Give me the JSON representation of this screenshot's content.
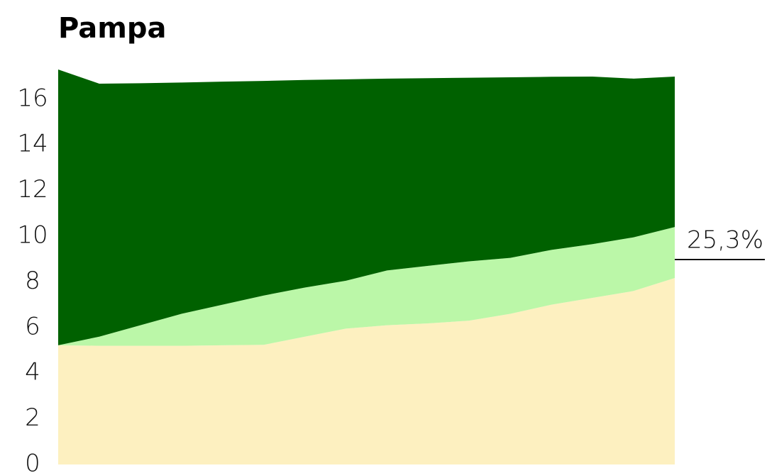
{
  "chart_data": {
    "type": "stacked-area",
    "title": "Pampa",
    "annotation": "25,3%",
    "categories": [
      null,
      null,
      null,
      null,
      null,
      null,
      null,
      null,
      null,
      null,
      null,
      null,
      null,
      null,
      null,
      null
    ],
    "series": [
      {
        "color": "#fdf0c0",
        "values": [
          5.22,
          5.2,
          5.2,
          5.2,
          5.22,
          5.24,
          5.6,
          5.95,
          6.1,
          6.18,
          6.3,
          6.6,
          7.0,
          7.3,
          7.6,
          8.17
        ]
      },
      {
        "color": "#bbf7a8",
        "values": [
          0,
          0.4,
          0.9,
          1.4,
          1.78,
          2.16,
          2.15,
          2.1,
          2.4,
          2.52,
          2.6,
          2.45,
          2.4,
          2.35,
          2.35,
          2.23
        ]
      },
      {
        "color": "#006100",
        "values": [
          12.08,
          11.08,
          10.6,
          10.13,
          9.77,
          9.4,
          9.09,
          8.82,
          8.4,
          8.22,
          8.04,
          7.91,
          7.58,
          7.34,
          6.95,
          6.59
        ]
      }
    ],
    "ylim": [
      0,
      17.3
    ],
    "yticks": [
      0,
      2,
      4,
      6,
      8,
      10,
      12,
      14,
      16
    ]
  }
}
